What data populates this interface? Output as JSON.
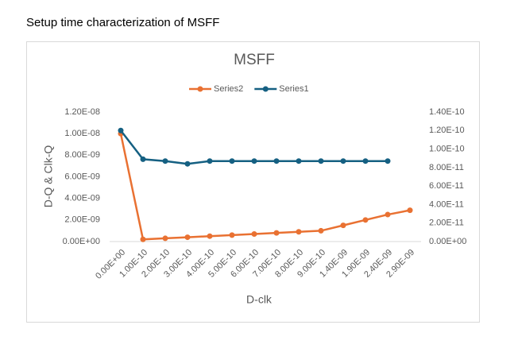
{
  "heading": "Setup time characterization of MSFF",
  "chart_data": {
    "type": "line",
    "title": "MSFF",
    "xlabel": "D-clk",
    "ylabel": "D-Q & Clk-Q",
    "grid": false,
    "legend": "top",
    "categories": [
      "0.00E+00",
      "1.00E-10",
      "2.00E-10",
      "3.00E-10",
      "4.00E-10",
      "5.00E-10",
      "6.00E-10",
      "7.00E-10",
      "8.00E-10",
      "9.00E-10",
      "1.40E-09",
      "1.90E-09",
      "2.40E-09",
      "2.90E-09"
    ],
    "series": [
      {
        "name": "Series2",
        "color": "#E97132",
        "values": [
          1e-08,
          2e-10,
          3e-10,
          4e-10,
          5e-10,
          6e-10,
          7e-10,
          8e-10,
          9e-10,
          1e-09,
          1.5e-09,
          2e-09,
          2.5e-09,
          2.9e-09
        ]
      },
      {
        "name": "Series1",
        "color": "#156082",
        "axis": "y2",
        "values": [
          1.2e-10,
          8.9e-11,
          8.7e-11,
          8.4e-11,
          8.7e-11,
          8.7e-11,
          8.7e-11,
          8.7e-11,
          8.7e-11,
          8.7e-11,
          8.7e-11,
          8.7e-11,
          8.7e-11,
          null
        ]
      }
    ],
    "ylim": [
      0,
      1.2e-08
    ],
    "yticks": [
      {
        "value": 0,
        "label": "0.00E+00"
      },
      {
        "value": 2e-09,
        "label": "2.00E-09"
      },
      {
        "value": 4e-09,
        "label": "4.00E-09"
      },
      {
        "value": 6e-09,
        "label": "6.00E-09"
      },
      {
        "value": 8e-09,
        "label": "8.00E-09"
      },
      {
        "value": 1e-08,
        "label": "1.00E-08"
      },
      {
        "value": 1.2e-08,
        "label": "1.20E-08"
      }
    ],
    "y2lim": [
      0,
      1.4e-10
    ],
    "y2ticks": [
      {
        "value": 0,
        "label": "0.00E+00"
      },
      {
        "value": 2e-11,
        "label": "2.00E-11"
      },
      {
        "value": 4e-11,
        "label": "4.00E-11"
      },
      {
        "value": 6e-11,
        "label": "6.00E-11"
      },
      {
        "value": 8e-11,
        "label": "8.00E-11"
      },
      {
        "value": 1e-10,
        "label": "1.00E-10"
      },
      {
        "value": 1.2e-10,
        "label": "1.20E-10"
      },
      {
        "value": 1.4e-10,
        "label": "1.40E-10"
      }
    ]
  }
}
